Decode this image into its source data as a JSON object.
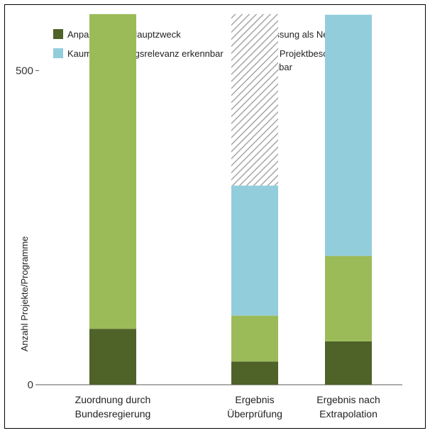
{
  "chart_data": {
    "type": "bar",
    "stacked": true,
    "categories": [
      [
        "Zuordnung durch",
        "Bundesregierung"
      ],
      [
        "Ergebnis",
        "Überprüfung"
      ],
      [
        "Ergebnis nach",
        "Extrapolation"
      ]
    ],
    "ylabel": "Anzahl Projekte/Programme",
    "ylim": [
      0,
      600
    ],
    "yticks": [
      0,
      500
    ],
    "grid": false,
    "legend_position": "top",
    "series": [
      {
        "name": "Anpassung als Hauptzweck",
        "color": "#4f6228",
        "pattern": "solid",
        "values": [
          89,
          37,
          69
        ]
      },
      {
        "name": "Anpassung als Nebenzweck",
        "color": "#9bbb59",
        "pattern": "solid",
        "values": [
          501,
          73,
          136
        ]
      },
      {
        "name": "Kaum Anpassungsrelevanz erkennbar",
        "color": "#92cddc",
        "pattern": "solid",
        "values": [
          0,
          207,
          384
        ]
      },
      {
        "name": [
          "Keine Projektbeschreibung",
          "verfügbar"
        ],
        "color": "#a6a6a6",
        "pattern": "hatch",
        "values": [
          0,
          273,
          0
        ]
      }
    ]
  }
}
